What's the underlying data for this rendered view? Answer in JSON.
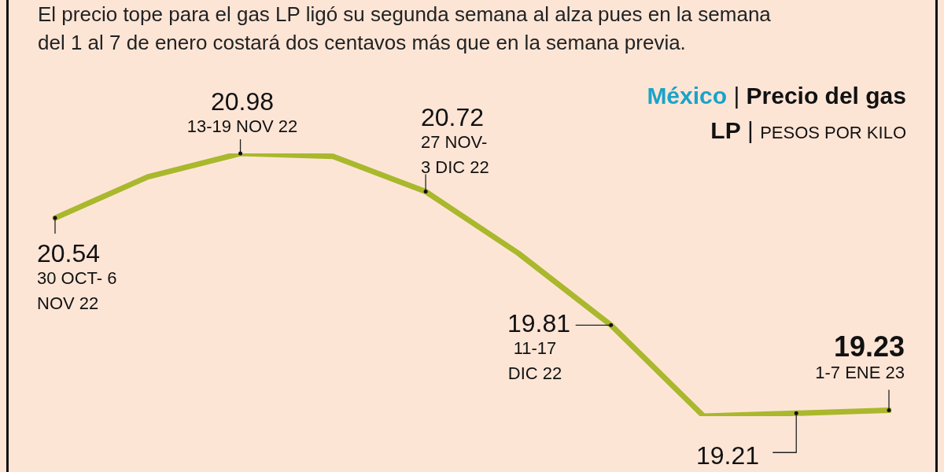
{
  "chart_data": {
    "type": "line",
    "title": "México | Precio del gas LP | PESOS POR KILO",
    "subtitle": "El precio tope para el gas LP ligó su segunda semana al alza pues en la semana del 1 al 7 de enero costará dos centavos más que en la semana previa.",
    "categories": [
      null,
      null,
      null,
      null,
      null,
      null,
      null,
      null,
      null,
      null
    ],
    "annotations": [
      "30 OCT- 6 NOV 22",
      "13-19 NOV 22",
      "27 NOV- 3 DIC 22",
      "11-17 DIC 22",
      "1-7 ENE 23"
    ],
    "series": [
      {
        "color": "#a9b82c",
        "values": [
          20.54,
          20.82,
          20.98,
          20.96,
          20.72,
          20.3,
          19.81,
          19.19,
          19.21,
          19.23
        ],
        "value_labels": [
          "20.54",
          null,
          "20.98",
          null,
          "20.72",
          null,
          "19.81",
          null,
          "19.21",
          "19.23"
        ]
      }
    ],
    "marker": "none",
    "line_style": "solid",
    "legend": false,
    "tick_labels": false
  }
}
